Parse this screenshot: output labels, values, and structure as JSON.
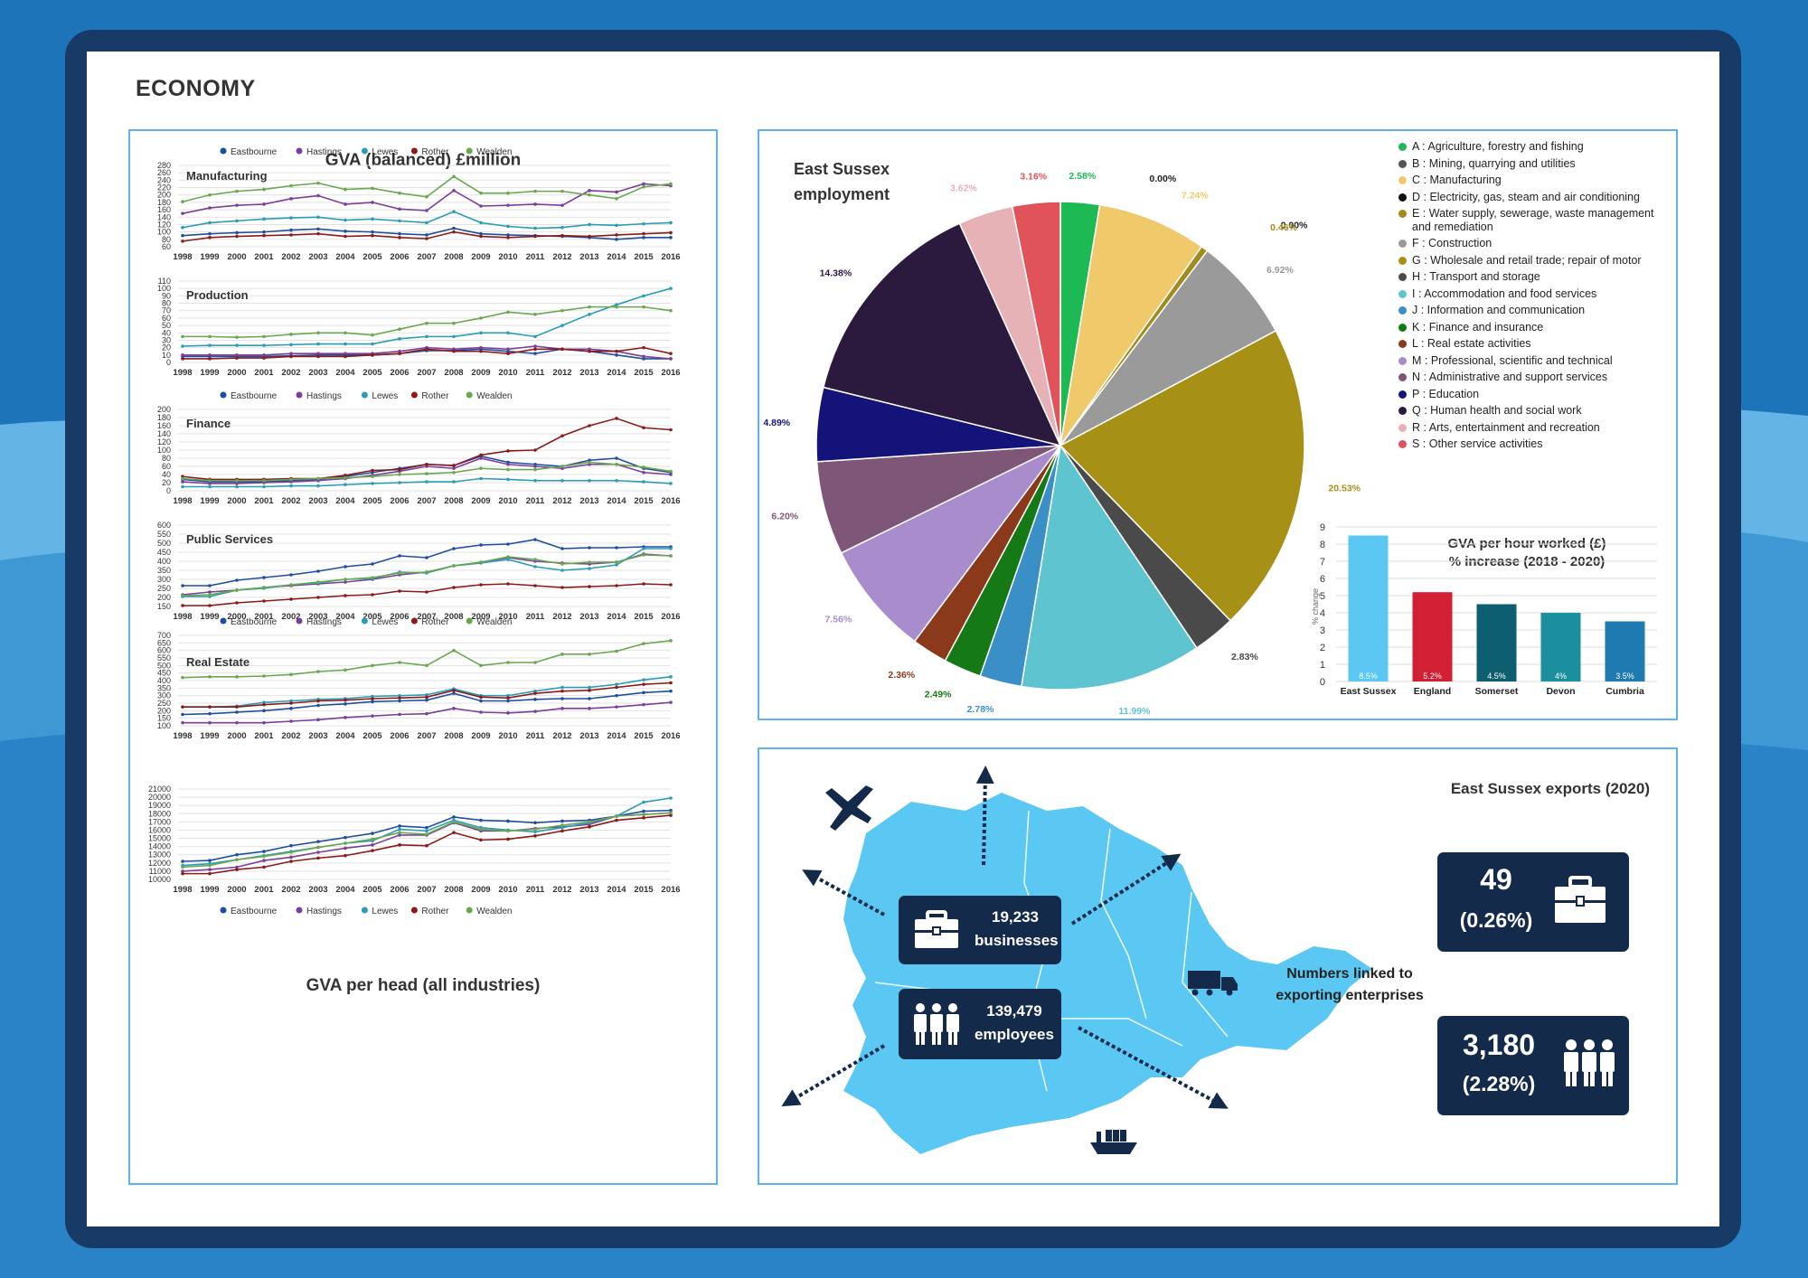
{
  "page": {
    "title": "ECONOMY"
  },
  "colors": {
    "frame": "#173a66",
    "panel_border": "#5db4e6",
    "map": "#5bc8f3",
    "dark_box": "#132a4a"
  },
  "gva_section": {
    "title": "GVA (balanced) £million"
  },
  "line_legend": [
    {
      "name": "Eastbourne",
      "color": "#1f4e9e"
    },
    {
      "name": "Hastings",
      "color": "#7b3f98"
    },
    {
      "name": "Lewes",
      "color": "#2a9db5"
    },
    {
      "name": "Rother",
      "color": "#8b1a1a"
    },
    {
      "name": "Wealden",
      "color": "#6aa84f"
    }
  ],
  "years": [
    "1998",
    "1999",
    "2000",
    "2001",
    "2002",
    "2003",
    "2004",
    "2005",
    "2006",
    "2007",
    "2008",
    "2009",
    "2010",
    "2011",
    "2012",
    "2013",
    "2014",
    "2015",
    "2016"
  ],
  "chart_data": [
    {
      "type": "line",
      "title": "Manufacturing",
      "ylim": [
        60,
        280
      ],
      "yticks": [
        60,
        80,
        100,
        120,
        140,
        160,
        180,
        200,
        220,
        240,
        260,
        280
      ],
      "series": [
        {
          "name": "Eastbourne",
          "values": [
            90,
            95,
            98,
            100,
            105,
            108,
            102,
            100,
            95,
            92,
            110,
            95,
            92,
            90,
            88,
            85,
            80,
            85,
            85
          ]
        },
        {
          "name": "Hastings",
          "values": [
            150,
            165,
            172,
            175,
            190,
            198,
            175,
            180,
            162,
            158,
            212,
            170,
            172,
            175,
            172,
            212,
            208,
            230,
            225
          ]
        },
        {
          "name": "Lewes",
          "values": [
            112,
            125,
            130,
            135,
            138,
            140,
            132,
            135,
            130,
            125,
            155,
            125,
            115,
            110,
            112,
            120,
            118,
            122,
            125
          ]
        },
        {
          "name": "Rother",
          "values": [
            75,
            85,
            88,
            90,
            92,
            95,
            88,
            90,
            85,
            82,
            100,
            88,
            85,
            88,
            90,
            88,
            92,
            95,
            98
          ]
        },
        {
          "name": "Wealden",
          "values": [
            182,
            200,
            210,
            215,
            225,
            232,
            215,
            218,
            205,
            195,
            250,
            205,
            205,
            210,
            210,
            200,
            190,
            222,
            230
          ]
        }
      ]
    },
    {
      "type": "line",
      "title": "Production",
      "ylim": [
        0,
        110
      ],
      "yticks": [
        0,
        10,
        20,
        30,
        40,
        50,
        60,
        70,
        80,
        90,
        100,
        110
      ],
      "series": [
        {
          "name": "Eastbourne",
          "values": [
            8,
            8,
            8,
            8,
            9,
            10,
            10,
            10,
            12,
            16,
            16,
            18,
            15,
            12,
            18,
            15,
            10,
            5,
            5
          ]
        },
        {
          "name": "Hastings",
          "values": [
            10,
            10,
            10,
            10,
            12,
            12,
            12,
            12,
            15,
            20,
            18,
            20,
            18,
            22,
            18,
            18,
            15,
            8,
            5
          ]
        },
        {
          "name": "Lewes",
          "values": [
            22,
            23,
            23,
            23,
            24,
            25,
            25,
            25,
            32,
            35,
            35,
            40,
            40,
            35,
            50,
            65,
            78,
            90,
            100
          ]
        },
        {
          "name": "Rother",
          "values": [
            5,
            5,
            6,
            6,
            8,
            8,
            8,
            10,
            12,
            18,
            15,
            15,
            12,
            18,
            18,
            15,
            15,
            20,
            12
          ]
        },
        {
          "name": "Wealden",
          "values": [
            35,
            35,
            34,
            35,
            38,
            40,
            40,
            37,
            45,
            53,
            53,
            60,
            68,
            65,
            70,
            75,
            75,
            75,
            70
          ]
        }
      ]
    },
    {
      "type": "line",
      "title": "Finance",
      "ylim": [
        0,
        200
      ],
      "yticks": [
        0,
        20,
        40,
        60,
        80,
        100,
        120,
        140,
        160,
        180,
        200
      ],
      "series": [
        {
          "name": "Eastbourne",
          "values": [
            28,
            22,
            22,
            22,
            25,
            28,
            35,
            45,
            55,
            65,
            62,
            85,
            70,
            65,
            60,
            75,
            80,
            55,
            45
          ]
        },
        {
          "name": "Hastings",
          "values": [
            22,
            18,
            18,
            20,
            22,
            25,
            30,
            38,
            48,
            60,
            55,
            80,
            65,
            60,
            55,
            65,
            65,
            45,
            40
          ]
        },
        {
          "name": "Lewes",
          "values": [
            10,
            10,
            10,
            10,
            12,
            12,
            15,
            18,
            20,
            22,
            22,
            30,
            28,
            25,
            25,
            25,
            25,
            22,
            18
          ]
        },
        {
          "name": "Rother",
          "values": [
            35,
            28,
            28,
            28,
            30,
            30,
            38,
            50,
            52,
            65,
            62,
            88,
            98,
            100,
            135,
            160,
            178,
            155,
            150
          ]
        },
        {
          "name": "Wealden",
          "values": [
            30,
            25,
            25,
            25,
            28,
            30,
            32,
            35,
            40,
            42,
            45,
            55,
            52,
            52,
            60,
            70,
            65,
            58,
            48
          ]
        }
      ]
    },
    {
      "type": "line",
      "title": "Public Services",
      "ylim": [
        150,
        600
      ],
      "yticks": [
        150,
        200,
        250,
        300,
        350,
        400,
        450,
        500,
        550,
        600
      ],
      "series": [
        {
          "name": "Eastbourne",
          "values": [
            265,
            265,
            295,
            310,
            325,
            345,
            370,
            385,
            430,
            420,
            470,
            490,
            495,
            520,
            470,
            475,
            475,
            480,
            480
          ]
        },
        {
          "name": "Hastings",
          "values": [
            215,
            230,
            240,
            255,
            265,
            275,
            285,
            300,
            325,
            340,
            375,
            395,
            420,
            400,
            390,
            385,
            395,
            440,
            430
          ]
        },
        {
          "name": "Lewes",
          "values": [
            205,
            205,
            240,
            250,
            270,
            280,
            300,
            305,
            340,
            335,
            375,
            390,
            410,
            370,
            350,
            360,
            380,
            470,
            470
          ]
        },
        {
          "name": "Rother",
          "values": [
            155,
            155,
            170,
            180,
            190,
            200,
            210,
            215,
            235,
            230,
            255,
            270,
            275,
            265,
            255,
            260,
            265,
            275,
            270
          ]
        },
        {
          "name": "Wealden",
          "values": [
            210,
            215,
            240,
            255,
            270,
            285,
            300,
            310,
            335,
            340,
            375,
            395,
            425,
            410,
            385,
            395,
            395,
            435,
            430
          ]
        }
      ]
    },
    {
      "type": "line",
      "title": "Real Estate",
      "ylim": [
        100,
        700
      ],
      "yticks": [
        100,
        150,
        200,
        250,
        300,
        350,
        400,
        450,
        500,
        550,
        600,
        650,
        700
      ],
      "series": [
        {
          "name": "Eastbourne",
          "values": [
            175,
            180,
            190,
            200,
            215,
            235,
            245,
            260,
            265,
            270,
            315,
            265,
            265,
            275,
            280,
            280,
            300,
            320,
            330
          ]
        },
        {
          "name": "Hastings",
          "values": [
            120,
            120,
            120,
            120,
            130,
            140,
            155,
            165,
            175,
            180,
            215,
            190,
            185,
            195,
            215,
            215,
            225,
            240,
            255
          ]
        },
        {
          "name": "Lewes",
          "values": [
            225,
            225,
            230,
            255,
            265,
            275,
            280,
            295,
            300,
            305,
            345,
            300,
            300,
            330,
            355,
            355,
            375,
            405,
            425
          ]
        },
        {
          "name": "Rother",
          "values": [
            225,
            225,
            225,
            240,
            250,
            265,
            270,
            280,
            285,
            290,
            335,
            290,
            285,
            315,
            330,
            335,
            355,
            375,
            385
          ]
        },
        {
          "name": "Wealden",
          "values": [
            420,
            425,
            425,
            430,
            440,
            460,
            470,
            500,
            520,
            500,
            600,
            500,
            520,
            520,
            575,
            575,
            595,
            645,
            665
          ]
        }
      ]
    },
    {
      "type": "line",
      "title": "GVA per head (all industries)",
      "ylim": [
        10000,
        21000
      ],
      "yticks": [
        10000,
        11000,
        12000,
        13000,
        14000,
        15000,
        16000,
        17000,
        18000,
        19000,
        20000,
        21000
      ],
      "series": [
        {
          "name": "Eastbourne",
          "values": [
            12200,
            12300,
            13000,
            13400,
            14100,
            14600,
            15100,
            15600,
            16500,
            16300,
            17600,
            17200,
            17100,
            16900,
            17100,
            17200,
            17700,
            18300,
            18400
          ]
        },
        {
          "name": "Hastings",
          "values": [
            11000,
            11200,
            11500,
            12300,
            12700,
            13300,
            13800,
            14200,
            15400,
            15400,
            16900,
            15900,
            15900,
            16200,
            16400,
            16700,
            17700,
            17900,
            18100
          ]
        },
        {
          "name": "Lewes",
          "values": [
            11700,
            11900,
            12400,
            12900,
            13400,
            13900,
            14400,
            14700,
            16100,
            15900,
            17200,
            16300,
            16000,
            15800,
            16300,
            16900,
            17700,
            19400,
            19900
          ]
        },
        {
          "name": "Rother",
          "values": [
            10700,
            10700,
            11200,
            11500,
            12200,
            12600,
            12900,
            13500,
            14200,
            14100,
            15700,
            14800,
            14900,
            15300,
            15900,
            16400,
            17200,
            17500,
            17800
          ]
        },
        {
          "name": "Wealden",
          "values": [
            11500,
            11700,
            12400,
            12800,
            13300,
            13900,
            14400,
            14900,
            15700,
            15500,
            17000,
            16100,
            15900,
            16100,
            16600,
            17000,
            17700,
            17900,
            18100
          ]
        }
      ]
    },
    {
      "type": "pie",
      "title": "East Sussex employment",
      "slices": [
        {
          "code": "A",
          "label": "Agriculture, forestry and fishing",
          "value": 2.58,
          "pct": "2.58%",
          "color": "#1db954"
        },
        {
          "code": "B",
          "label": "Mining, quarrying and utilities",
          "value": 0,
          "pct": "0.00%",
          "color": "#555555"
        },
        {
          "code": "C",
          "label": "Manufacturing",
          "value": 7.24,
          "pct": "7.24%",
          "color": "#f0c96a"
        },
        {
          "code": "D",
          "label": "Electricity, gas, steam and air conditioning",
          "value": 0,
          "pct": "0.00%",
          "color": "#111111"
        },
        {
          "code": "E",
          "label": "Water supply, sewerage, waste management and remediation",
          "value": 0.46,
          "pct": "0.46%",
          "color": "#a08b1c"
        },
        {
          "code": "F",
          "label": "Construction",
          "value": 6.92,
          "pct": "6.92%",
          "color": "#9a9a9a"
        },
        {
          "code": "G",
          "label": "Wholesale and retail trade; repair of motor",
          "value": 20.53,
          "pct": "20.53%",
          "color": "#a69016"
        },
        {
          "code": "H",
          "label": "Transport and storage",
          "value": 2.83,
          "pct": "2.83%",
          "color": "#4a4a4a"
        },
        {
          "code": "I",
          "label": "Accommodation and food services",
          "value": 11.99,
          "pct": "11.99%",
          "color": "#5ec4d0"
        },
        {
          "code": "J",
          "label": "Information and communication",
          "value": 2.78,
          "pct": "2.78%",
          "color": "#3b8fc7"
        },
        {
          "code": "K",
          "label": "Finance and insurance",
          "value": 2.49,
          "pct": "2.49%",
          "color": "#157a15"
        },
        {
          "code": "L",
          "label": "Real estate activities",
          "value": 2.36,
          "pct": "2.36%",
          "color": "#8a3a1a"
        },
        {
          "code": "M",
          "label": "Professional, scientific and technical",
          "value": 7.56,
          "pct": "7.56%",
          "color": "#a98ccc"
        },
        {
          "code": "N",
          "label": "Administrative and support services",
          "value": 6.2,
          "pct": "6.20%",
          "color": "#7e5677"
        },
        {
          "code": "P",
          "label": "Education",
          "value": 4.89,
          "pct": "4.89%",
          "color": "#14137a"
        },
        {
          "code": "Q",
          "label": "Human health and social work",
          "value": 14.38,
          "pct": "14.38%",
          "color": "#2b1a3e"
        },
        {
          "code": "R",
          "label": "Arts, entertainment and recreation",
          "value": 3.62,
          "pct": "3.62%",
          "color": "#e6b2b6"
        },
        {
          "code": "S",
          "label": "Other service activities",
          "value": 3.16,
          "pct": "3.16%",
          "color": "#e0535b"
        }
      ]
    },
    {
      "type": "bar",
      "title": "GVA per hour worked (£) % increase (2018 - 2020)",
      "ylabel": "% change",
      "ylim": [
        0,
        9
      ],
      "yticks": [
        0,
        1,
        2,
        3,
        4,
        5,
        6,
        7,
        8,
        9
      ],
      "categories": [
        "East Sussex",
        "England",
        "Somerset",
        "Devon",
        "Cumbria"
      ],
      "values": [
        8.5,
        5.2,
        4.5,
        4,
        3.5
      ],
      "value_labels": [
        "8.5%",
        "5.2%",
        "4.5%",
        "4%",
        "3.5%"
      ],
      "colors": [
        "#5bc8f3",
        "#d11f34",
        "#0d5e6e",
        "#1b8f9e",
        "#1e7ab0"
      ]
    }
  ],
  "pie_title_lines": [
    "East Sussex",
    "employment"
  ],
  "bar_title_lines": [
    "GVA per hour worked (£)",
    "% increase (2018 - 2020)"
  ],
  "exports": {
    "title": "East Sussex exports (2020)",
    "businesses_value": "19,233",
    "businesses_label": "businesses",
    "employees_value": "139,479",
    "employees_label": "employees",
    "linked_count": "49",
    "linked_pct": "(0.26%)",
    "linked_caption_1": "Numbers linked to",
    "linked_caption_2": "exporting enterprises",
    "emp_count": "3,180",
    "emp_pct": "(2.28%)"
  }
}
